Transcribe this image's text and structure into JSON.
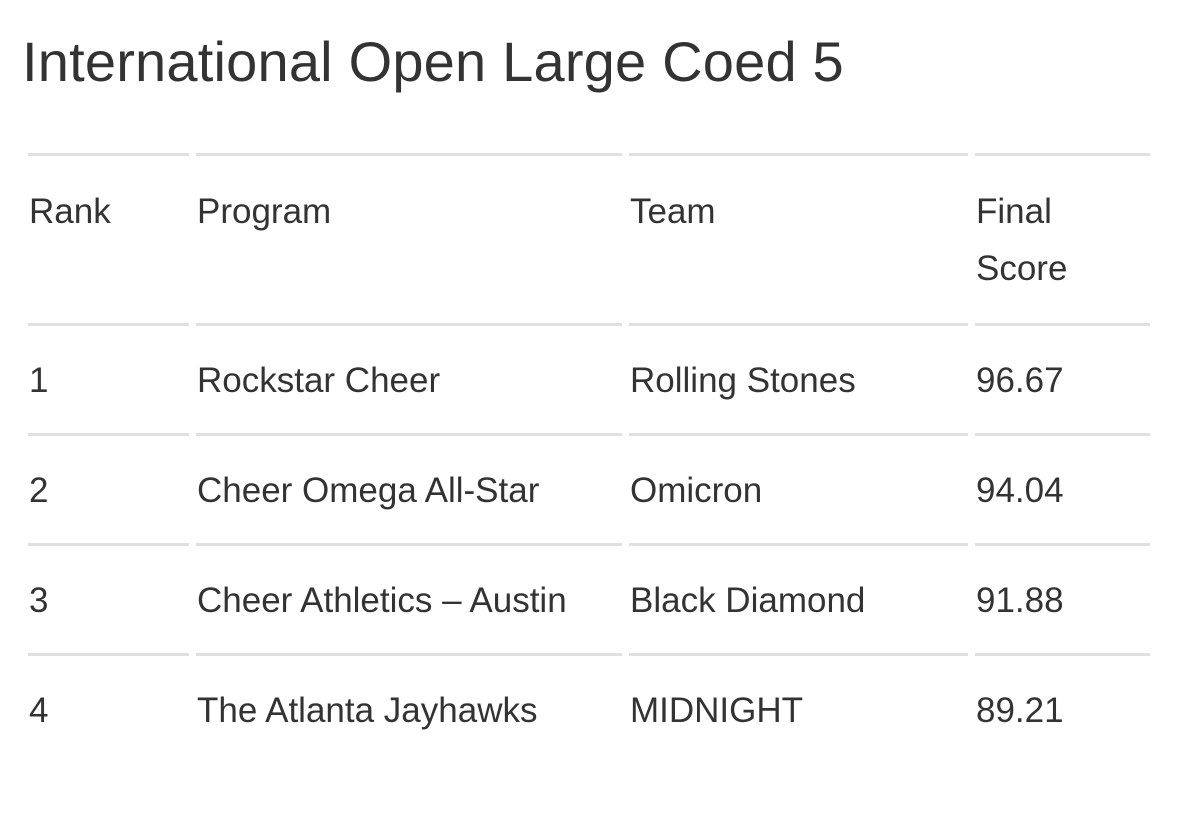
{
  "page": {
    "title": "International Open Large Coed 5"
  },
  "table": {
    "columns": {
      "rank": "Rank",
      "program": "Program",
      "team": "Team",
      "final_score": "Final Score"
    },
    "rows": [
      {
        "rank": "1",
        "program": "Rockstar Cheer",
        "team": "Rolling Stones",
        "final_score": "96.67"
      },
      {
        "rank": "2",
        "program": "Cheer Omega All-Star",
        "team": "Omicron",
        "final_score": "94.04"
      },
      {
        "rank": "3",
        "program": "Cheer Athletics – Austin",
        "team": "Black Diamond",
        "final_score": "91.88"
      },
      {
        "rank": "4",
        "program": "The Atlanta Jayhawks",
        "team": "MIDNIGHT",
        "final_score": "89.21"
      }
    ]
  },
  "colors": {
    "text": "#333333",
    "row_border": "#e0e0e0",
    "background": "#ffffff"
  }
}
